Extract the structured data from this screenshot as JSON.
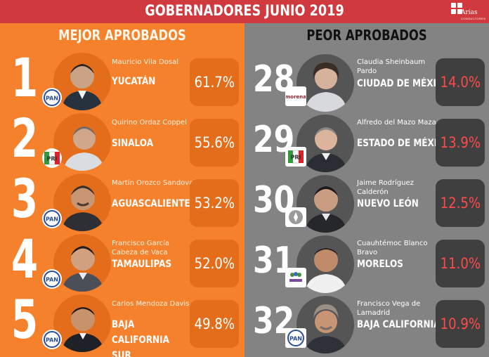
{
  "header": {
    "title": "GOBERNADORES JUNIO 2019",
    "brand": {
      "name": "Arias",
      "sub": "CONSULTORES"
    }
  },
  "colors": {
    "header_red": "#d03a3f",
    "left_bg": "#f6812c",
    "left_box": "#e46d1c",
    "right_bg": "#838383",
    "right_box": "#3f3f3f",
    "right_pct": "#ff4a4a"
  },
  "left": {
    "title": "MEJOR APROBADOS",
    "items": [
      {
        "rank": "1",
        "name": "Mauricio Vila Dosal",
        "state": "YUCATÁN",
        "pct": "61.7%",
        "party": "PAN"
      },
      {
        "rank": "2",
        "name": "Quirino Ordaz Coppel",
        "state": "SINALOA",
        "pct": "55.6%",
        "party": "PRI"
      },
      {
        "rank": "3",
        "name": "Martín Orozco Sandoval",
        "state": "AGUASCALIENTES",
        "pct": "53.2%",
        "party": "PAN"
      },
      {
        "rank": "4",
        "name": "Francisco García Cabeza de Vaca",
        "state": "TAMAULIPAS",
        "pct": "52.0%",
        "party": "PAN"
      },
      {
        "rank": "5",
        "name": "Carlos Mendoza Davis",
        "state": "BAJA CALIFORNIA SUR",
        "pct": "49.8%",
        "party": "PAN"
      }
    ]
  },
  "right": {
    "title": "PEOR APROBADOS",
    "items": [
      {
        "rank": "28",
        "name": "Claudia Sheinbaum Pardo",
        "state": "CIUDAD DE MÉXICO",
        "pct": "14.0%",
        "party": "morena"
      },
      {
        "rank": "29",
        "name": "Alfredo del Mazo Maza",
        "state": "ESTADO DE MÉXICO",
        "pct": "13.9%",
        "party": "PRI"
      },
      {
        "rank": "30",
        "name": "Jaime Rodríguez Calderón",
        "state": "NUEVO LEÓN",
        "pct": "12.5%",
        "party": "independiente"
      },
      {
        "rank": "31",
        "name": "Cuauhtémoc Blanco Bravo",
        "state": "MORELOS",
        "pct": "11.0%",
        "party": "encuentro social"
      },
      {
        "rank": "32",
        "name": "Francisco Vega de Lamadrid",
        "state": "BAJA CALIFORNIA",
        "pct": "10.9%",
        "party": "PAN"
      }
    ]
  }
}
